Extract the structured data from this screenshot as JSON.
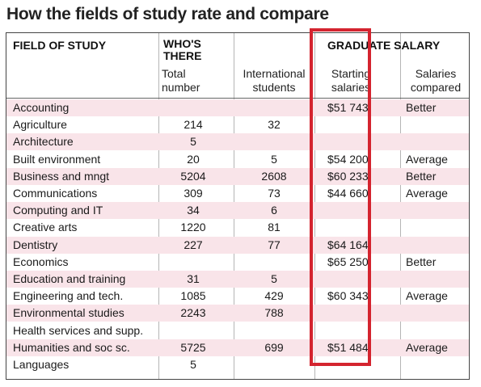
{
  "title": "How the fields of study rate and compare",
  "headers": {
    "field": "FIELD OF STUDY",
    "whos_there_1": "WHO'S",
    "whos_there_2": "THERE",
    "graduate_salary": "GRADUATE SALARY",
    "total_1": "Total",
    "total_2": "number",
    "intl_1": "International",
    "intl_2": "students",
    "starting_1": "Starting",
    "starting_2": "salaries",
    "compared_1": "Salaries",
    "compared_2": "compared"
  },
  "colors": {
    "row_pink": "#f9e4e9",
    "highlight_red": "#d4242f"
  },
  "rows": [
    {
      "field": "Accounting",
      "total": "",
      "intl": "",
      "starting": "$51 743",
      "compared": "Better"
    },
    {
      "field": "Agriculture",
      "total": "214",
      "intl": "32",
      "starting": "",
      "compared": ""
    },
    {
      "field": "Architecture",
      "total": "5",
      "intl": "",
      "starting": "",
      "compared": ""
    },
    {
      "field": "Built environment",
      "total": "20",
      "intl": "5",
      "starting": "$54 200",
      "compared": "Average"
    },
    {
      "field": "Business and mngt",
      "total": "5204",
      "intl": "2608",
      "starting": "$60 233",
      "compared": "Better"
    },
    {
      "field": "Communications",
      "total": "309",
      "intl": "73",
      "starting": "$44 660",
      "compared": "Average"
    },
    {
      "field": "Computing and IT",
      "total": "34",
      "intl": "6",
      "starting": "",
      "compared": ""
    },
    {
      "field": "Creative arts",
      "total": "1220",
      "intl": "81",
      "starting": "",
      "compared": ""
    },
    {
      "field": "Dentistry",
      "total": "227",
      "intl": "77",
      "starting": "$64 164",
      "compared": ""
    },
    {
      "field": "Economics",
      "total": "",
      "intl": "",
      "starting": "$65 250",
      "compared": "Better"
    },
    {
      "field": "Education and training",
      "total": "31",
      "intl": "5",
      "starting": "",
      "compared": ""
    },
    {
      "field": "Engineering and tech.",
      "total": "1085",
      "intl": "429",
      "starting": "$60 343",
      "compared": "Average"
    },
    {
      "field": "Environmental studies",
      "total": "2243",
      "intl": "788",
      "starting": "",
      "compared": ""
    },
    {
      "field": "Health services and supp.",
      "total": "",
      "intl": "",
      "starting": "",
      "compared": ""
    },
    {
      "field": "Humanities and soc sc.",
      "total": "5725",
      "intl": "699",
      "starting": "$51 484",
      "compared": "Average"
    },
    {
      "field": "Languages",
      "total": "5",
      "intl": "",
      "starting": "",
      "compared": ""
    }
  ]
}
